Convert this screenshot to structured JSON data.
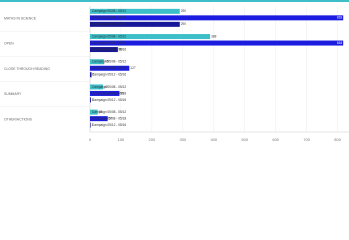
{
  "chart_data": {
    "type": "bar",
    "orientation": "horizontal",
    "categories": [
      "MATHS IN SCIENCE",
      "OPEN",
      "CLOSE THROUGH READING",
      "SUMMARY",
      "OTHER/ACTIONS"
    ],
    "series": [
      {
        "name": "Campaign 05/08 - 05/12",
        "color": "#3cbfc8",
        "values": [
          290,
          388,
          45,
          42,
          25
        ]
      },
      {
        "name": "Campaign 05/08 - 05/18",
        "color": "#1c1ce0",
        "values": [
          818,
          818,
          127,
          95,
          57
        ]
      },
      {
        "name": "Campaign 05/12 - 05/16",
        "color": "#17179a",
        "values": [
          290,
          90,
          5,
          3,
          2
        ]
      }
    ],
    "xlim": [
      0,
      840
    ],
    "xticks": [
      0,
      100,
      200,
      300,
      400,
      500,
      600,
      700,
      800
    ],
    "grid": true
  }
}
